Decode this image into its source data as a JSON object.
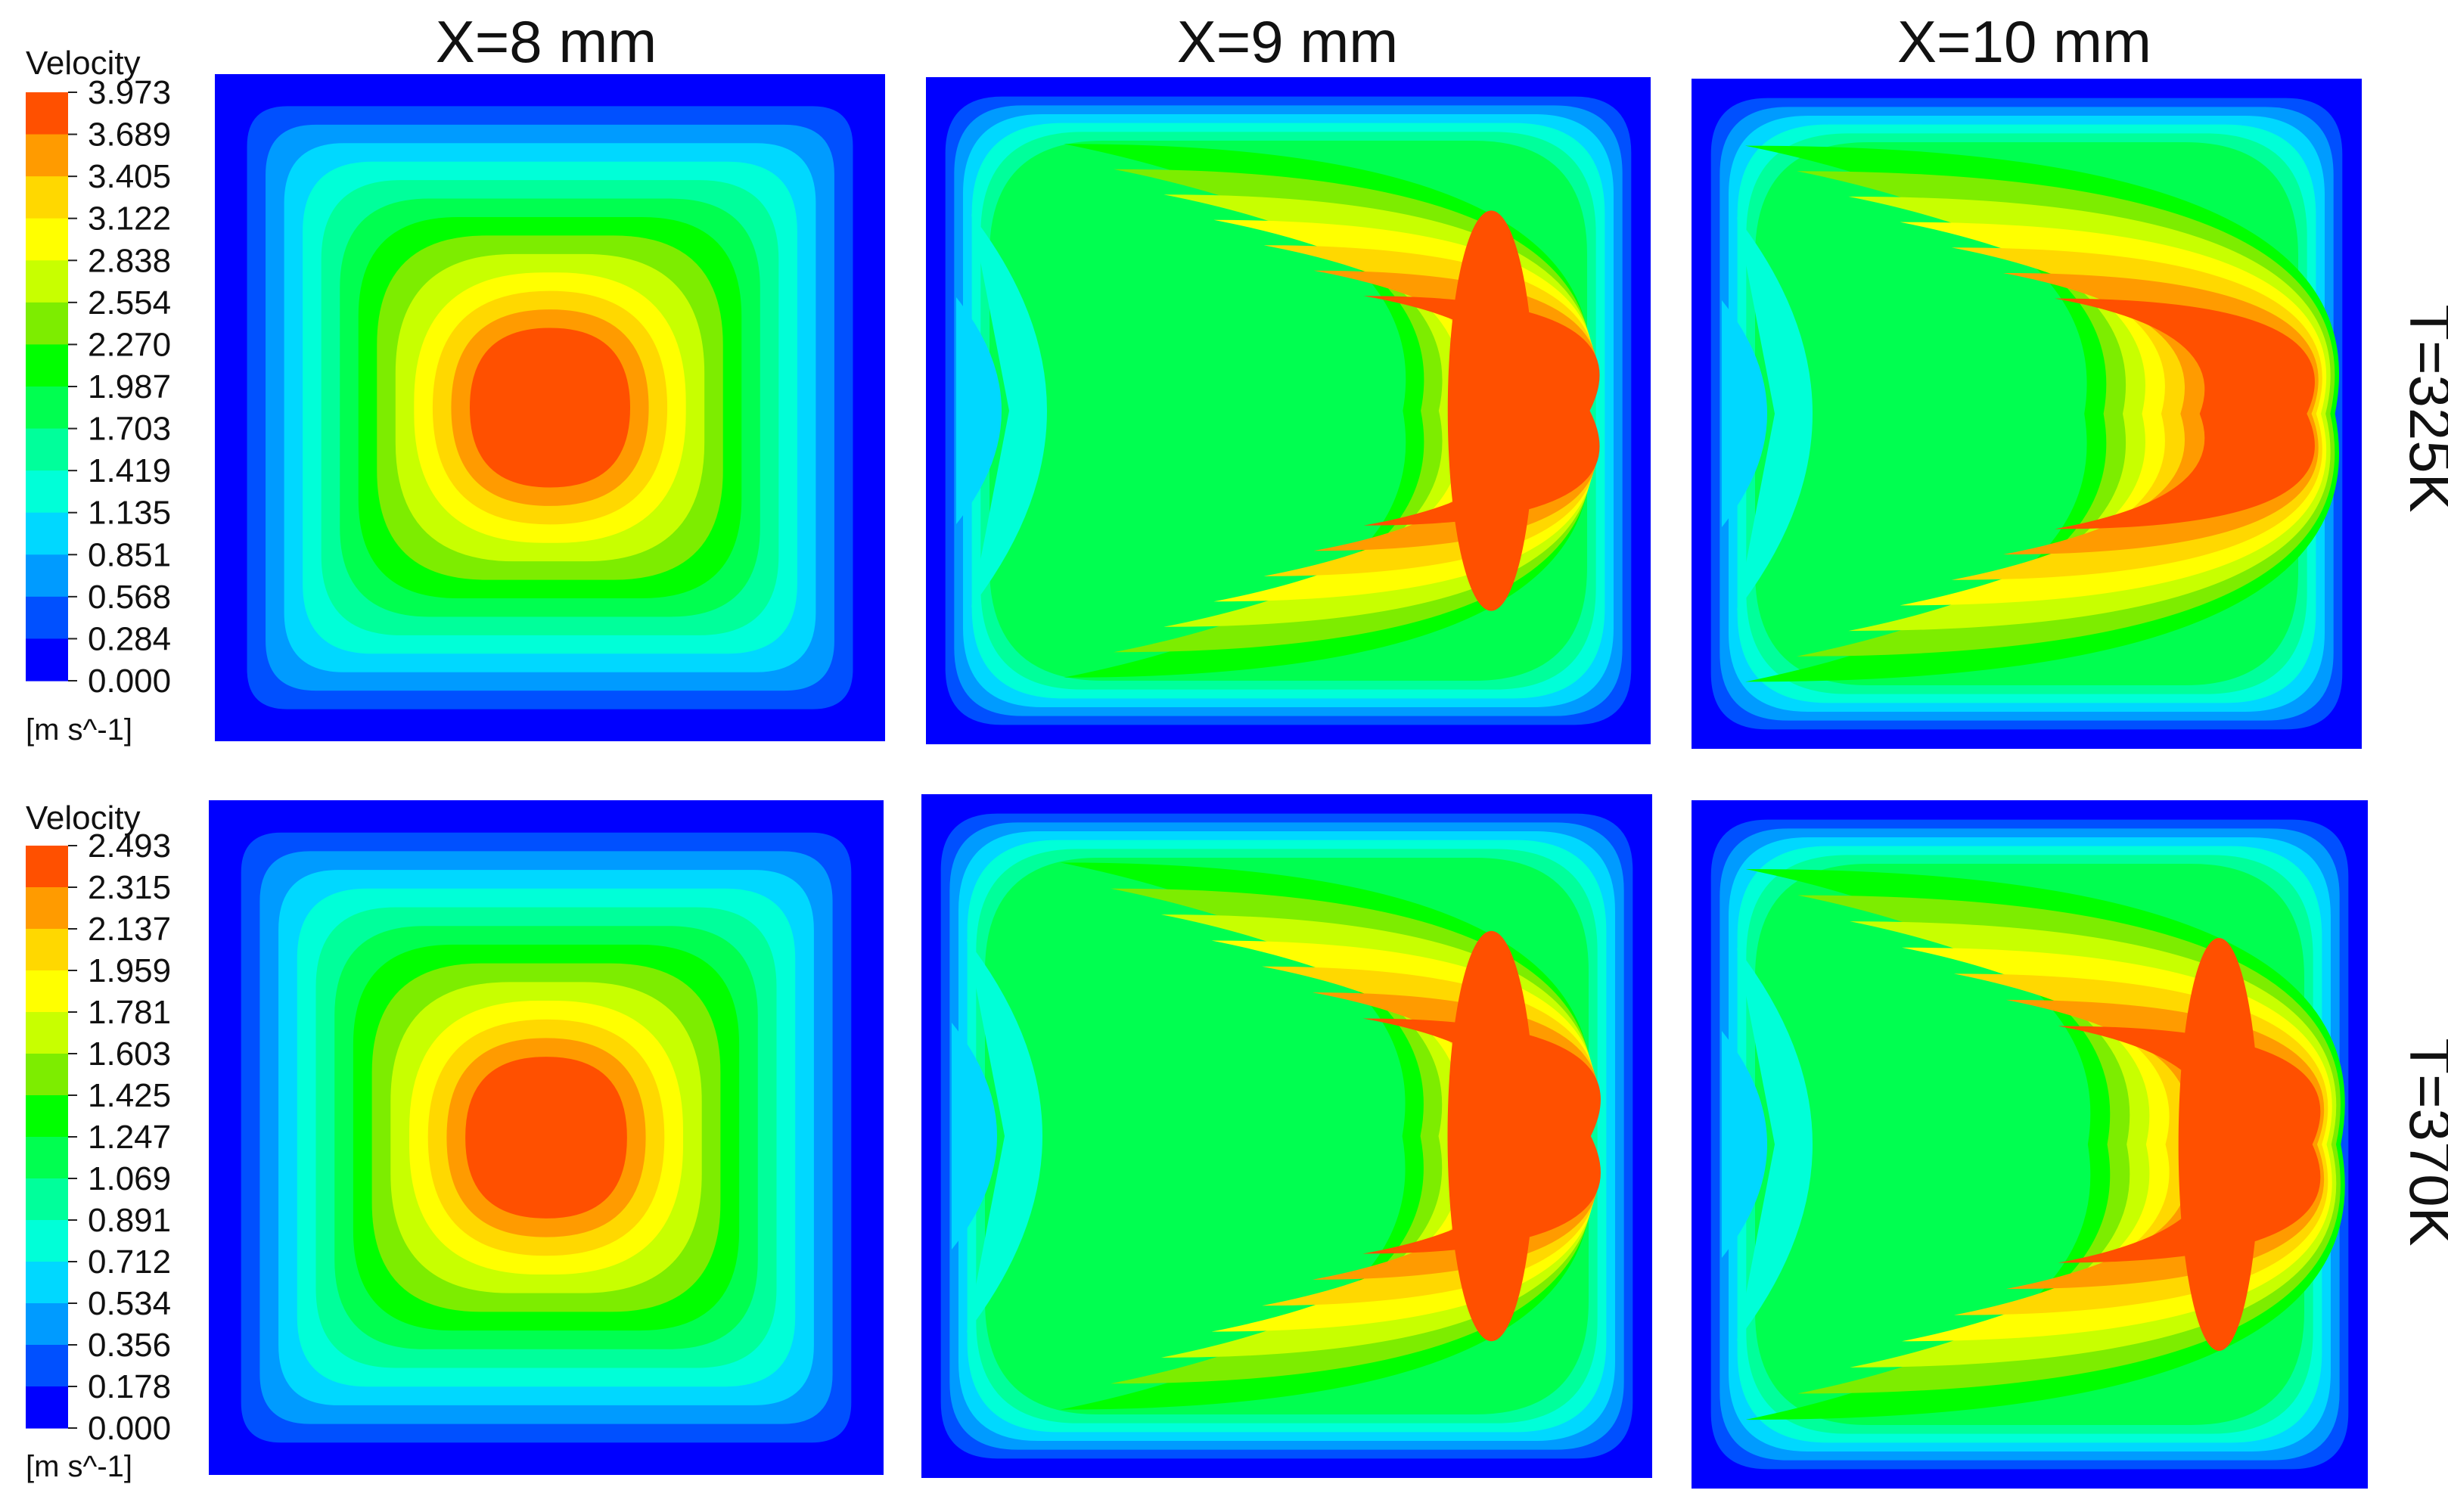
{
  "colormap": [
    "#0000ff",
    "#0050ff",
    "#009bff",
    "#00d8ff",
    "#00ffd8",
    "#00ff9b",
    "#00ff50",
    "#00ff00",
    "#7ded00",
    "#c8ff00",
    "#ffff00",
    "#ffd800",
    "#ff9b00",
    "#ff5000"
  ],
  "chart_data": {
    "type": "heatmap",
    "quantity": "Velocity",
    "unit": "[m s^-1]",
    "columns": [
      "X=8 mm",
      "X=9 mm",
      "X=10 mm"
    ],
    "rows": [
      {
        "label": "T=325K",
        "legend": {
          "title": "Velocity",
          "unit": "[m s^-1]",
          "ticks": [
            "3.973",
            "3.689",
            "3.405",
            "3.122",
            "2.838",
            "2.554",
            "2.270",
            "1.987",
            "1.703",
            "1.419",
            "1.135",
            "0.851",
            "0.568",
            "0.284",
            "0.000"
          ],
          "max": 3.973,
          "min": 0.0
        }
      },
      {
        "label": "T=370K",
        "legend": {
          "title": "Velocity",
          "unit": "[m s^-1]",
          "ticks": [
            "2.493",
            "2.315",
            "2.137",
            "1.959",
            "1.781",
            "1.603",
            "1.425",
            "1.247",
            "1.069",
            "0.891",
            "0.712",
            "0.534",
            "0.356",
            "0.178",
            "0.000"
          ],
          "max": 2.493,
          "min": 0.0
        }
      }
    ],
    "fields": [
      {
        "row": 0,
        "col": 0,
        "pattern": "centered-core",
        "core_level": 14
      },
      {
        "row": 0,
        "col": 1,
        "pattern": "crescent-right",
        "core_level": 14
      },
      {
        "row": 0,
        "col": 2,
        "pattern": "crescent-wide",
        "core_level": 13
      },
      {
        "row": 1,
        "col": 0,
        "pattern": "centered-core",
        "core_level": 14
      },
      {
        "row": 1,
        "col": 1,
        "pattern": "crescent-right",
        "core_level": 14
      },
      {
        "row": 1,
        "col": 2,
        "pattern": "crescent-wide",
        "core_level": 14
      }
    ]
  }
}
